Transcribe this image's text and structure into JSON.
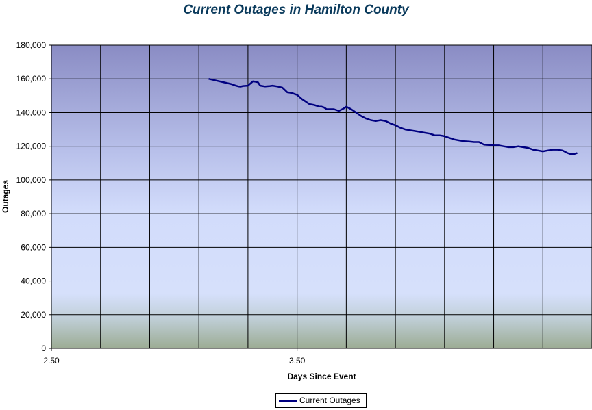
{
  "chart_data": {
    "type": "line",
    "title": "Current Outages in Hamilton County",
    "xlabel": "Days Since Event",
    "ylabel": "Outages",
    "xlim": [
      2.5,
      4.7
    ],
    "ylim": [
      0,
      180000
    ],
    "x_ticks": [
      2.5,
      3.5
    ],
    "x_tick_labels": [
      "2.50",
      "3.50"
    ],
    "y_ticks": [
      0,
      20000,
      40000,
      60000,
      80000,
      100000,
      120000,
      140000,
      160000,
      180000
    ],
    "y_tick_labels": [
      "0",
      "20,000",
      "40,000",
      "60,000",
      "80,000",
      "100,000",
      "120,000",
      "140,000",
      "160,000",
      "180,000"
    ],
    "grid": true,
    "legend": "bottom-center",
    "series": [
      {
        "name": "Current Outages",
        "color": "#000080",
        "x": [
          3.14,
          3.17,
          3.2,
          3.23,
          3.24,
          3.25,
          3.26,
          3.27,
          3.28,
          3.3,
          3.32,
          3.33,
          3.34,
          3.35,
          3.37,
          3.39,
          3.4,
          3.42,
          3.44,
          3.46,
          3.47,
          3.48,
          3.49,
          3.5,
          3.52,
          3.53,
          3.55,
          3.57,
          3.58,
          3.59,
          3.6,
          3.61,
          3.62,
          3.63,
          3.65,
          3.67,
          3.69,
          3.7,
          3.72,
          3.74,
          3.76,
          3.78,
          3.8,
          3.82,
          3.84,
          3.86,
          3.88,
          3.9,
          3.92,
          3.94,
          3.96,
          3.98,
          4.0,
          4.02,
          4.04,
          4.06,
          4.08,
          4.1,
          4.12,
          4.14,
          4.16,
          4.18,
          4.2,
          4.22,
          4.24,
          4.26,
          4.28,
          4.3,
          4.32,
          4.34,
          4.36,
          4.38,
          4.4,
          4.42,
          4.44,
          4.46,
          4.48,
          4.5,
          4.52,
          4.54,
          4.56,
          4.58,
          4.6,
          4.61,
          4.63,
          4.64
        ],
        "values": [
          160000,
          159000,
          158000,
          157000,
          156500,
          156000,
          155600,
          155400,
          155800,
          156000,
          158500,
          158300,
          158000,
          156000,
          155500,
          155800,
          156000,
          155500,
          154800,
          152000,
          151800,
          151500,
          151000,
          150500,
          148000,
          147000,
          145000,
          144500,
          144000,
          143500,
          143500,
          143000,
          142000,
          142000,
          142000,
          141000,
          142500,
          143500,
          142000,
          140000,
          138000,
          136500,
          135500,
          135000,
          135500,
          135000,
          133500,
          132500,
          131000,
          130000,
          129500,
          129000,
          128500,
          128000,
          127500,
          126500,
          126500,
          126000,
          125000,
          124000,
          123500,
          123000,
          122800,
          122500,
          122500,
          121000,
          120800,
          120500,
          120500,
          120000,
          119500,
          119500,
          120000,
          119500,
          119000,
          118000,
          117500,
          117000,
          117500,
          118000,
          118000,
          117500,
          116000,
          115500,
          115500,
          116000
        ]
      }
    ]
  }
}
